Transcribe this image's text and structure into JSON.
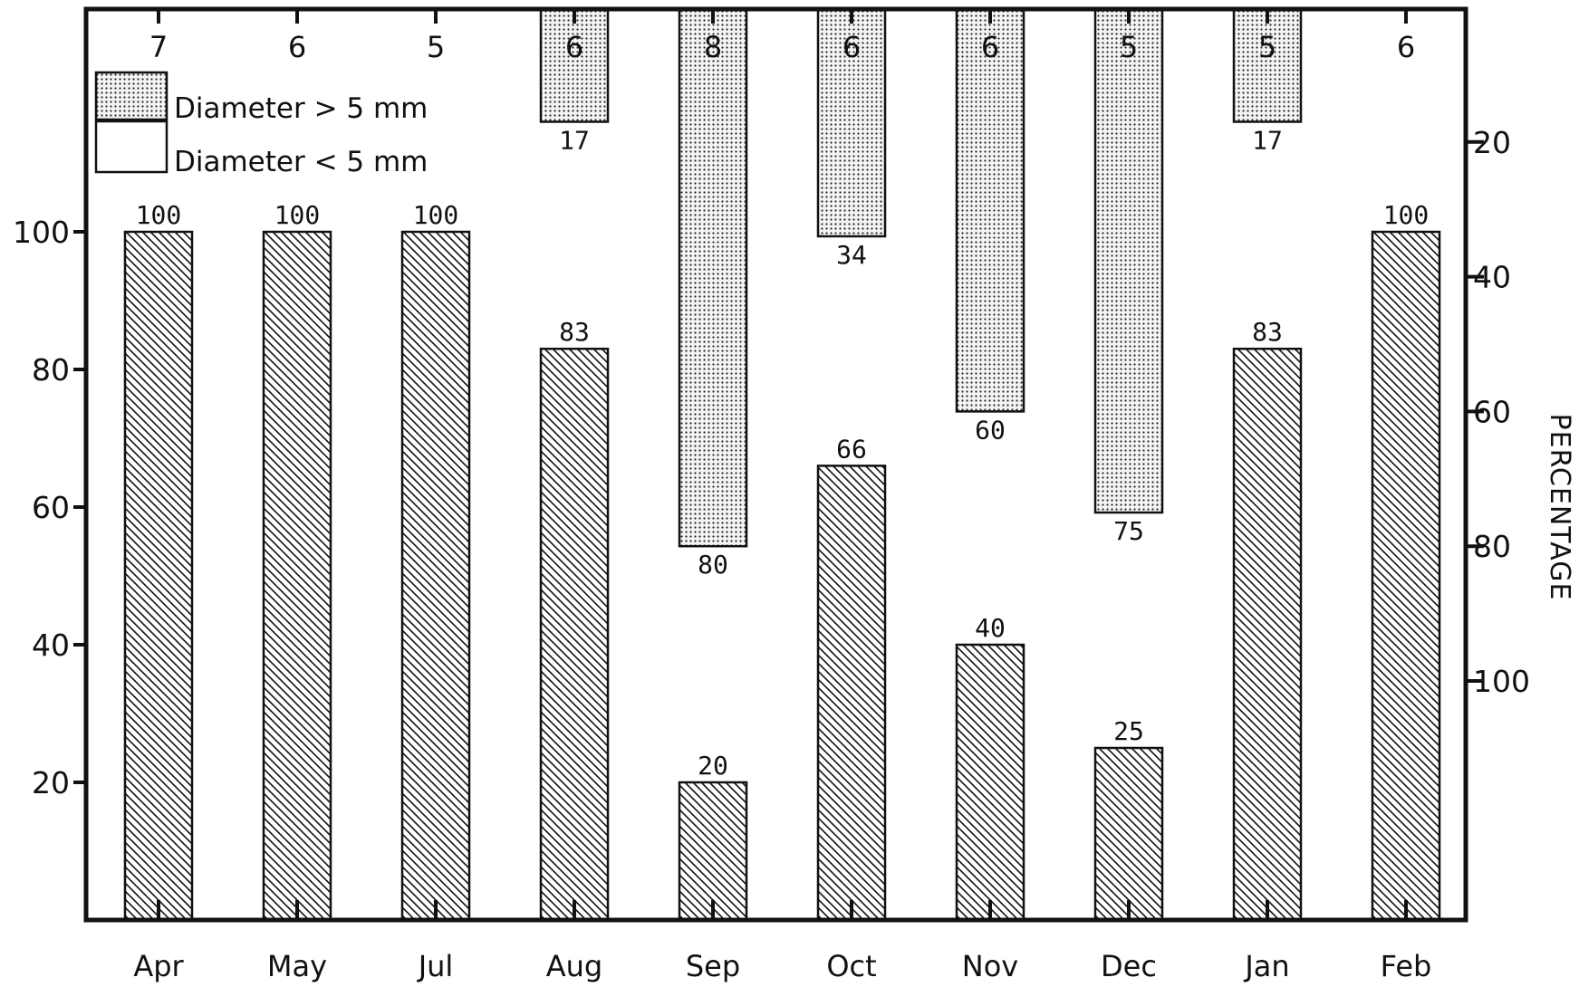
{
  "chart_data": {
    "type": "bar",
    "categories": [
      "Apr",
      "May",
      "Jul",
      "Aug",
      "Sep",
      "Oct",
      "Nov",
      "Dec",
      "Jan",
      "Feb"
    ],
    "sample_counts": [
      "7",
      "6",
      "5",
      "6",
      "8",
      "6",
      "6",
      "5",
      "5",
      "6"
    ],
    "series": [
      {
        "name": "Diameter < 5 mm",
        "values": [
          100,
          100,
          100,
          83,
          20,
          66,
          40,
          25,
          83,
          100
        ],
        "labels": [
          "100",
          "100",
          "100",
          "83",
          "20",
          "66",
          "40",
          "25",
          "83",
          "100"
        ],
        "fill": "hatched",
        "axis": "left"
      },
      {
        "name": "Diameter > 5 mm",
        "values": [
          0,
          0,
          0,
          17,
          80,
          34,
          60,
          75,
          17,
          0
        ],
        "labels": [
          "",
          "",
          "",
          "17",
          "80",
          "34",
          "60",
          "75",
          "17",
          ""
        ],
        "fill": "dotted",
        "axis": "right",
        "direction": "downward"
      }
    ],
    "left_axis": {
      "ticks": [
        "20",
        "40",
        "60",
        "80",
        "100"
      ],
      "tick_values": [
        20,
        40,
        60,
        80,
        100
      ],
      "ylim": [
        0,
        100
      ]
    },
    "right_axis": {
      "label": "PERCENTAGE",
      "ticks": [
        "20",
        "40",
        "60",
        "80",
        "100"
      ],
      "tick_values": [
        20,
        40,
        60,
        80,
        100
      ],
      "inverted": true
    },
    "legend": {
      "position": "top-left",
      "items": [
        "Diameter > 5 mm",
        "Diameter < 5 mm"
      ]
    },
    "colors": {
      "ink": "#111111",
      "background": "#ffffff"
    }
  }
}
